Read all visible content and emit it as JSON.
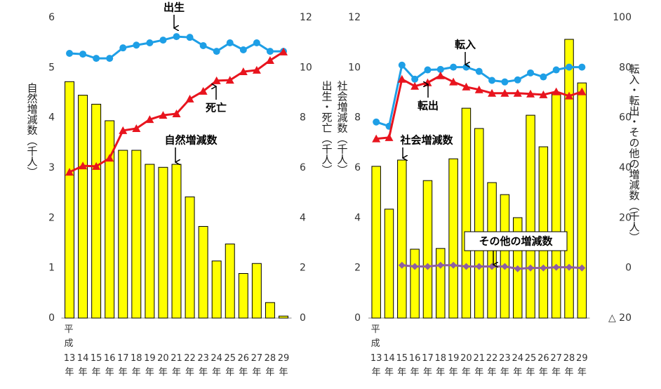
{
  "chart_data": [
    {
      "type": "combo",
      "era_label": "平成",
      "categories": [
        "13年",
        "14年",
        "15年",
        "16年",
        "17年",
        "18年",
        "19年",
        "20年",
        "21年",
        "22年",
        "23年",
        "24年",
        "25年",
        "26年",
        "27年",
        "28年",
        "29年"
      ],
      "y_label": "自然増減数（千人）",
      "y2_label": "出生・死亡（千人）",
      "ylim": [
        0,
        6
      ],
      "yticks": [
        0,
        1,
        2,
        3,
        4,
        5,
        6
      ],
      "y2lim": [
        0,
        12
      ],
      "y2ticks": [
        0,
        2,
        4,
        6,
        8,
        10,
        12
      ],
      "series": [
        {
          "name": "自然増減数",
          "kind": "bar",
          "color": "#ffff00",
          "values": [
            4.72,
            4.45,
            4.27,
            3.94,
            3.35,
            3.35,
            3.07,
            3.01,
            3.07,
            2.42,
            1.83,
            1.14,
            1.48,
            0.89,
            1.09,
            0.31,
            0.04
          ]
        },
        {
          "name": "出生",
          "kind": "line",
          "marker": "circle",
          "color": "#1e9fe6",
          "axis": "y2",
          "values": [
            10.57,
            10.54,
            10.37,
            10.37,
            10.79,
            10.9,
            10.99,
            11.1,
            11.24,
            11.21,
            10.88,
            10.65,
            10.99,
            10.71,
            10.99,
            10.65,
            10.65
          ]
        },
        {
          "name": "死亡",
          "kind": "line",
          "marker": "triangle",
          "color": "#e8141e",
          "axis": "y2",
          "values": [
            5.83,
            6.08,
            6.06,
            6.39,
            7.49,
            7.57,
            7.93,
            8.1,
            8.16,
            8.75,
            9.06,
            9.48,
            9.5,
            9.84,
            9.9,
            10.29,
            10.63
          ]
        }
      ]
    },
    {
      "type": "combo",
      "era_label": "平成",
      "categories": [
        "13年",
        "14年",
        "15年",
        "16年",
        "17年",
        "18年",
        "19年",
        "20年",
        "21年",
        "22年",
        "23年",
        "24年",
        "25年",
        "26年",
        "27年",
        "28年",
        "29年"
      ],
      "y_label": "社会増減数（千人）",
      "y2_label": "転入・転出・その他の増減数（千人）",
      "ylim": [
        0,
        12
      ],
      "yticks": [
        0,
        2,
        4,
        6,
        8,
        10,
        12
      ],
      "y2lim": [
        -20,
        100
      ],
      "y2ticks": [
        {
          "value": -20,
          "label": "△ 20"
        },
        0,
        20,
        40,
        60,
        80,
        100
      ],
      "series": [
        {
          "name": "社会増減数",
          "kind": "bar",
          "color": "#ffff00",
          "values": [
            6.06,
            4.35,
            6.31,
            2.75,
            5.49,
            2.78,
            6.36,
            8.38,
            7.57,
            5.41,
            4.93,
            4.01,
            8.1,
            6.84,
            8.97,
            11.13,
            9.39
          ]
        },
        {
          "name": "転入",
          "kind": "line",
          "marker": "circle",
          "color": "#1e9fe6",
          "axis": "y2",
          "values": [
            58.3,
            56.6,
            81.0,
            75.4,
            79.1,
            79.3,
            80.2,
            80.2,
            78.5,
            74.9,
            74.3,
            75.1,
            77.9,
            76.3,
            79.1,
            80.2,
            80.2
          ]
        },
        {
          "name": "転出",
          "kind": "line",
          "marker": "triangle",
          "color": "#e8141e",
          "axis": "y2",
          "values": [
            51.6,
            52.1,
            75.4,
            72.6,
            74.0,
            76.8,
            74.3,
            72.3,
            71.2,
            69.8,
            69.8,
            69.8,
            69.5,
            69.2,
            70.4,
            68.7,
            70.4
          ]
        },
        {
          "name": "その他の増減数",
          "kind": "line",
          "marker": "diamond",
          "color": "#8e5ea2",
          "axis": "y2",
          "values": [
            null,
            null,
            1.1,
            0.6,
            0.6,
            1.1,
            1.1,
            0.6,
            0.6,
            0.6,
            0.6,
            -0.3,
            0.0,
            0.0,
            0.3,
            0.3,
            0.0
          ]
        }
      ]
    }
  ]
}
